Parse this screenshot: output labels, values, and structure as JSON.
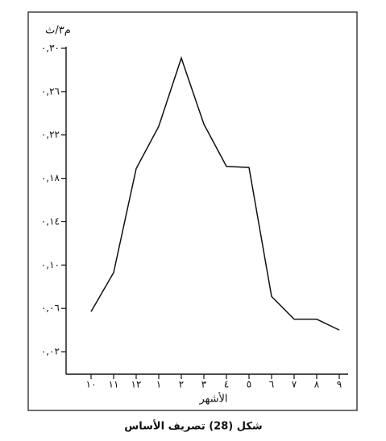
{
  "chart_data": {
    "type": "line",
    "caption": "شكل (28)  تصريف الأساس",
    "y_unit_label": "م٣/ث",
    "x_axis_label": "الأشهر",
    "categories": [
      "١٠",
      "١١",
      "١٢",
      "١",
      "٢",
      "٣",
      "٤",
      "٥",
      "٦",
      "٧",
      "٨",
      "٩"
    ],
    "series": [
      {
        "color": "#111111",
        "values": [
          0.057,
          0.093,
          0.189,
          0.228,
          0.291,
          0.23,
          0.191,
          0.19,
          0.071,
          0.05,
          0.05,
          0.04
        ]
      }
    ],
    "ylim": [
      0,
      0.3
    ],
    "yticks": [
      {
        "value": 0.02,
        "label": "٠,٠٢"
      },
      {
        "value": 0.06,
        "label": "٠,٠٦"
      },
      {
        "value": 0.1,
        "label": "٠,١٠"
      },
      {
        "value": 0.14,
        "label": "٠,١٤"
      },
      {
        "value": 0.18,
        "label": "٠,١٨"
      },
      {
        "value": 0.22,
        "label": "٠,٢٢"
      },
      {
        "value": 0.26,
        "label": "٠,٢٦"
      },
      {
        "value": 0.3,
        "label": "٠,٣٠"
      }
    ],
    "grid": false
  }
}
